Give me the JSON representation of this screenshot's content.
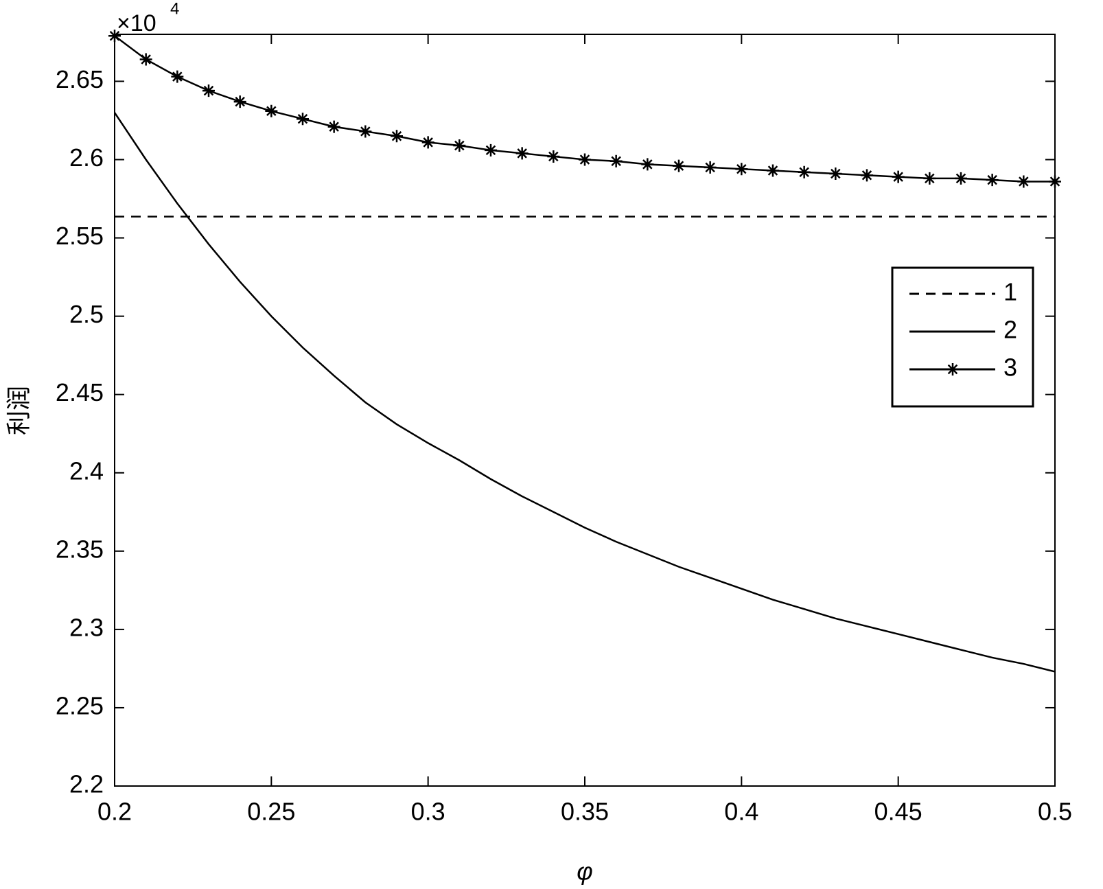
{
  "chart_data": {
    "type": "line",
    "x_label": "φ",
    "y_label": "利润",
    "y_scale_label": {
      "base": "×10",
      "exponent": "4"
    },
    "x": [
      0.2,
      0.21,
      0.22,
      0.23,
      0.24,
      0.25,
      0.26,
      0.27,
      0.28,
      0.29,
      0.3,
      0.31,
      0.32,
      0.33,
      0.34,
      0.35,
      0.36,
      0.37,
      0.38,
      0.39,
      0.4,
      0.41,
      0.42,
      0.43,
      0.44,
      0.45,
      0.46,
      0.47,
      0.48,
      0.49,
      0.5
    ],
    "series": [
      {
        "name": "1",
        "color": "#000000",
        "line_style": "dashed",
        "marker": "none",
        "values": [
          2.5636,
          2.5636,
          2.5636,
          2.5636,
          2.5636,
          2.5636,
          2.5636,
          2.5636,
          2.5636,
          2.5636,
          2.5636,
          2.5636,
          2.5636,
          2.5636,
          2.5636,
          2.5636,
          2.5636,
          2.5636,
          2.5636,
          2.5636,
          2.5636,
          2.5636,
          2.5636,
          2.5636,
          2.5636,
          2.5636,
          2.5636,
          2.5636,
          2.5636,
          2.5636,
          2.5636
        ]
      },
      {
        "name": "2",
        "color": "#000000",
        "line_style": "solid",
        "marker": "none",
        "values": [
          2.63,
          2.6,
          2.572,
          2.546,
          2.522,
          2.5,
          2.48,
          2.462,
          2.445,
          2.431,
          2.419,
          2.408,
          2.396,
          2.385,
          2.375,
          2.365,
          2.356,
          2.348,
          2.34,
          2.333,
          2.326,
          2.319,
          2.313,
          2.307,
          2.302,
          2.297,
          2.292,
          2.287,
          2.282,
          2.278,
          2.273
        ]
      },
      {
        "name": "3",
        "color": "#000000",
        "line_style": "solid",
        "marker": "asterisk",
        "values": [
          2.679,
          2.664,
          2.653,
          2.644,
          2.637,
          2.631,
          2.626,
          2.621,
          2.618,
          2.615,
          2.611,
          2.609,
          2.606,
          2.604,
          2.602,
          2.6,
          2.599,
          2.597,
          2.596,
          2.595,
          2.594,
          2.593,
          2.592,
          2.591,
          2.59,
          2.589,
          2.588,
          2.588,
          2.587,
          2.586,
          2.586
        ]
      }
    ],
    "xlim": [
      0.2,
      0.5
    ],
    "xticks": [
      0.2,
      0.25,
      0.3,
      0.35,
      0.4,
      0.45,
      0.5
    ],
    "ylim": [
      2.2,
      2.68
    ],
    "yticks": [
      2.2,
      2.25,
      2.3,
      2.35,
      2.4,
      2.45,
      2.5,
      2.55,
      2.6,
      2.65
    ],
    "grid": false,
    "legend": "right"
  }
}
